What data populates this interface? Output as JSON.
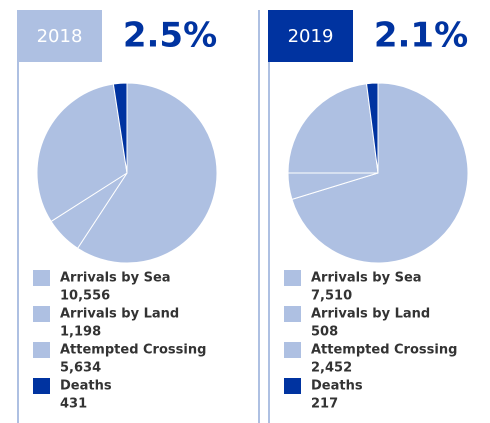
{
  "chart_data": [
    {
      "type": "pie",
      "title": "2018",
      "headline": "2.5%",
      "header_color": "#aec0e2",
      "categories": [
        "Arrivals by Sea",
        "Arrivals by Land",
        "Attempted Crossing",
        "Deaths"
      ],
      "values": [
        10556,
        1198,
        5634,
        431
      ],
      "value_labels": [
        "10,556",
        "1,198",
        "5,634",
        "431"
      ],
      "colors": [
        "#aec0e2",
        "#aec0e2",
        "#aec0e2",
        "#0033a0"
      ]
    },
    {
      "type": "pie",
      "title": "2019",
      "headline": "2.1%",
      "header_color": "#0033a0",
      "categories": [
        "Arrivals by Sea",
        "Arrivals by Land",
        "Attempted Crossing",
        "Deaths"
      ],
      "values": [
        7510,
        508,
        2452,
        217
      ],
      "value_labels": [
        "7,510",
        "508",
        "2,452",
        "217"
      ],
      "colors": [
        "#aec0e2",
        "#aec0e2",
        "#aec0e2",
        "#0033a0"
      ]
    }
  ]
}
